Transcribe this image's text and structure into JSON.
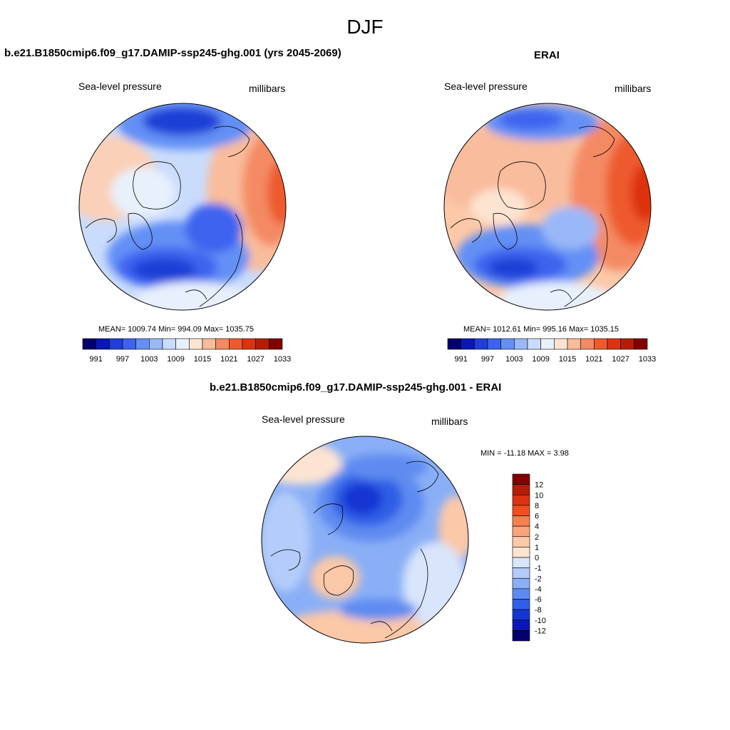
{
  "figure": {
    "title": "DJF"
  },
  "panels": {
    "model": {
      "title": "b.e21.B1850cmip6.f09_g17.DAMIP-ssp245-ghg.001 (yrs 2045-2069)",
      "left_label": "Sea-level pressure",
      "right_label": "millibars",
      "stats": "MEAN= 1009.74   Min= 994.09   Max= 1035.75"
    },
    "obs": {
      "title": "ERAI",
      "left_label": "Sea-level pressure",
      "right_label": "millibars",
      "stats": "MEAN= 1012.61   Min= 995.16   Max= 1035.15"
    },
    "diff": {
      "title": "b.e21.B1850cmip6.f09_g17.DAMIP-ssp245-ghg.001 - ERAI",
      "left_label": "Sea-level pressure",
      "right_label": "millibars",
      "stats": "MIN = -11.18  MAX =   3.98"
    }
  },
  "colorbars": {
    "abs": {
      "colors": [
        "#04006e",
        "#0a17b4",
        "#1f3fd6",
        "#3c63ef",
        "#6490f5",
        "#9ab8f8",
        "#cadcfc",
        "#e8f0fc",
        "#fde4d2",
        "#f9bc9c",
        "#f48a63",
        "#ee5a2e",
        "#dd3310",
        "#b41e08",
        "#820000"
      ],
      "ticks": [
        "991",
        "997",
        "1003",
        "1009",
        "1015",
        "1021",
        "1027",
        "1033"
      ]
    },
    "diff": {
      "colors": [
        "#820000",
        "#b41e08",
        "#dd3310",
        "#f04e1e",
        "#f67f4f",
        "#f9a57c",
        "#fbc8a8",
        "#fde4d2",
        "#d8e5fb",
        "#b3ccf9",
        "#8aaff6",
        "#5e8bf1",
        "#2f5fe6",
        "#1336d3",
        "#0a17b4",
        "#04006e"
      ],
      "ticks": [
        "12",
        "10",
        "8",
        "6",
        "4",
        "2",
        "1",
        "0",
        "-1",
        "-2",
        "-4",
        "-6",
        "-8",
        "-10",
        "-12"
      ]
    }
  }
}
